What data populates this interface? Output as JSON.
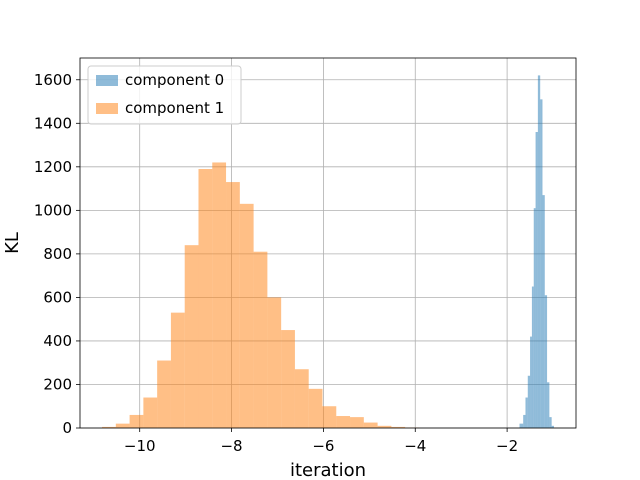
{
  "chart_data": {
    "type": "bar",
    "title": "",
    "xlabel": "iteration",
    "ylabel": "KL",
    "xlim": [
      -11.3,
      -0.5
    ],
    "ylim": [
      0,
      1700
    ],
    "xticks": [
      -10,
      -8,
      -6,
      -4,
      -2
    ],
    "xtick_labels": [
      "−10",
      "−8",
      "−6",
      "−4",
      "−2"
    ],
    "yticks": [
      0,
      200,
      400,
      600,
      800,
      1000,
      1200,
      1400,
      1600
    ],
    "ytick_labels": [
      "0",
      "200",
      "400",
      "600",
      "800",
      "1000",
      "1200",
      "1400",
      "1600"
    ],
    "grid": true,
    "legend_position": "top-left",
    "series": [
      {
        "name": "component 0",
        "color": "#1f77b4",
        "alpha": 0.5,
        "bin_edges": [
          -1.73,
          -1.65,
          -1.6,
          -1.55,
          -1.5,
          -1.46,
          -1.42,
          -1.38,
          -1.33,
          -1.28,
          -1.23,
          -1.18,
          -1.13,
          -1.08,
          -1.03,
          -0.98
        ],
        "counts": [
          20,
          60,
          140,
          240,
          420,
          650,
          1010,
          1360,
          1620,
          1510,
          1070,
          610,
          210,
          50,
          10
        ]
      },
      {
        "name": "component 1",
        "color": "#ff7f0e",
        "alpha": 0.5,
        "bin_edges": [
          -10.82,
          -10.52,
          -10.22,
          -9.92,
          -9.62,
          -9.32,
          -9.02,
          -8.72,
          -8.42,
          -8.12,
          -7.82,
          -7.52,
          -7.22,
          -6.92,
          -6.62,
          -6.32,
          -6.02,
          -5.72,
          -5.42,
          -5.12,
          -4.82,
          -4.52,
          -4.22,
          -3.92
        ],
        "counts": [
          5,
          20,
          60,
          140,
          310,
          530,
          840,
          1190,
          1220,
          1130,
          1030,
          810,
          600,
          450,
          270,
          180,
          100,
          55,
          50,
          25,
          10,
          5,
          2
        ]
      }
    ]
  }
}
